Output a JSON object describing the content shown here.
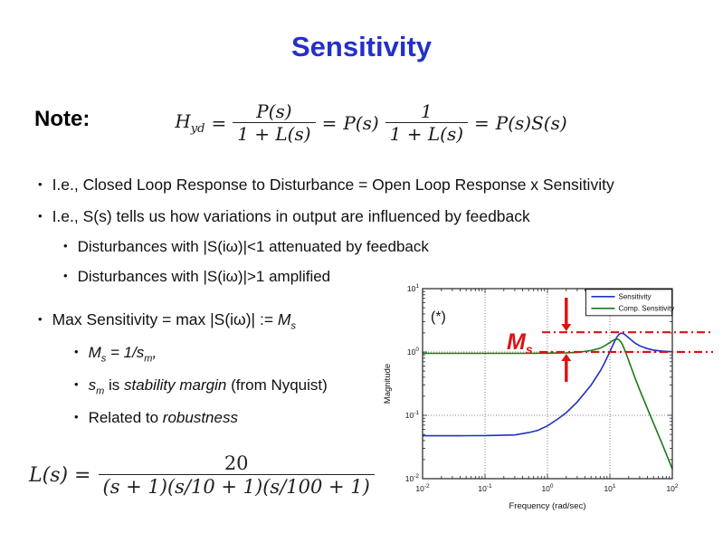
{
  "title": "Sensitivity",
  "title_color": "#2330CB",
  "note_label": "Note:",
  "note_formula": {
    "lhs": "H",
    "lhs_sub": "yd",
    "eq1": "=",
    "frac1_num": "P(s)",
    "frac1_den": "1 + L(s)",
    "eq2": "=",
    "mid": "P(s)",
    "frac2_num": "1",
    "frac2_den": "1 + L(s)",
    "eq3": "=",
    "rhs": "P(s)S(s)"
  },
  "bullets": {
    "b1": {
      "text": "I.e., Closed Loop Response to Disturbance =  Open Loop Response x Sensitivity"
    },
    "b2": {
      "text": "I.e.,  S(s) tells us how variations in output are influenced by feedback"
    },
    "b3": {
      "text": "Disturbances with |S(iω)|<1 attenuated by feedback"
    },
    "b4": {
      "text": "Disturbances with |S(iω)|>1 amplified"
    },
    "b5": {
      "pre": "Max Sensitivity = max |S(iω)| := ",
      "var": "M",
      "sub": "s"
    },
    "b6": {
      "m": "M",
      "msub": "s",
      "mid": " = 1/",
      "s": "s",
      "ssub": "m",
      "tail": ","
    },
    "b7": {
      "s": "s",
      "ssub": "m",
      "mid": " is ",
      "italic": "stability margin",
      "tail": " (from Nyquist)"
    },
    "b8": {
      "pre": "Related to ",
      "italic": "robustness"
    }
  },
  "loop_formula": {
    "lhs": "L(s) =",
    "num": "20",
    "den": "(s + 1)(s/10 + 1)(s/100 + 1)"
  },
  "chart_data": {
    "type": "line",
    "xlabel": "Frequency (rad/sec)",
    "ylabel": "Magnitude",
    "xscale": "log",
    "yscale": "log",
    "xlim": [
      0.01,
      100
    ],
    "ylim": [
      0.01,
      10
    ],
    "tick_base": "10",
    "xtick_exponents": [
      "-2",
      "-1",
      "0",
      "1",
      "2"
    ],
    "ytick_exponents": [
      "-2",
      "-1",
      "0",
      "1"
    ],
    "grid": true,
    "legend_position": "top-right",
    "series": [
      {
        "name": "Sensitivity",
        "color": "#2233BB",
        "points": [
          [
            0.01,
            0.0476
          ],
          [
            0.02,
            0.0476
          ],
          [
            0.05,
            0.0477
          ],
          [
            0.1,
            0.0478
          ],
          [
            0.2,
            0.0486
          ],
          [
            0.3,
            0.049
          ],
          [
            0.5,
            0.0533
          ],
          [
            0.7,
            0.058
          ],
          [
            1,
            0.068
          ],
          [
            1.5,
            0.089
          ],
          [
            2,
            0.11
          ],
          [
            3,
            0.162
          ],
          [
            5,
            0.3
          ],
          [
            7,
            0.5
          ],
          [
            8,
            0.64
          ],
          [
            9,
            0.81
          ],
          [
            10,
            1.01
          ],
          [
            11,
            1.25
          ],
          [
            12,
            1.5
          ],
          [
            13,
            1.73
          ],
          [
            14,
            1.9
          ],
          [
            15,
            1.98
          ],
          [
            16,
            1.97
          ],
          [
            17,
            1.91
          ],
          [
            18,
            1.83
          ],
          [
            20,
            1.67
          ],
          [
            25,
            1.39
          ],
          [
            30,
            1.25
          ],
          [
            40,
            1.13
          ],
          [
            50,
            1.07
          ],
          [
            70,
            1.03
          ],
          [
            100,
            1.01
          ]
        ]
      },
      {
        "name": "Comp. Sensitivity",
        "color": "#1A7A1A",
        "points": [
          [
            0.01,
            0.952
          ],
          [
            0.1,
            0.952
          ],
          [
            0.5,
            0.953
          ],
          [
            1,
            0.957
          ],
          [
            2,
            0.968
          ],
          [
            3,
            0.985
          ],
          [
            5,
            1.053
          ],
          [
            7,
            1.15
          ],
          [
            8,
            1.23
          ],
          [
            9,
            1.32
          ],
          [
            10,
            1.41
          ],
          [
            11,
            1.51
          ],
          [
            12,
            1.58
          ],
          [
            13,
            1.6
          ],
          [
            14,
            1.56
          ],
          [
            15,
            1.44
          ],
          [
            16,
            1.29
          ],
          [
            17,
            1.12
          ],
          [
            18,
            0.97
          ],
          [
            20,
            0.73
          ],
          [
            25,
            0.4
          ],
          [
            30,
            0.253
          ],
          [
            40,
            0.127
          ],
          [
            50,
            0.075
          ],
          [
            70,
            0.034
          ],
          [
            100,
            0.0142
          ]
        ]
      }
    ],
    "annotations": {
      "corner_label": "(*)",
      "ms_label": "M",
      "ms_label_sub": "s",
      "ms_line_value": 2.05,
      "unity_line_value": 1.0,
      "arrow_x": 2.0,
      "color": "#DD1111"
    }
  }
}
